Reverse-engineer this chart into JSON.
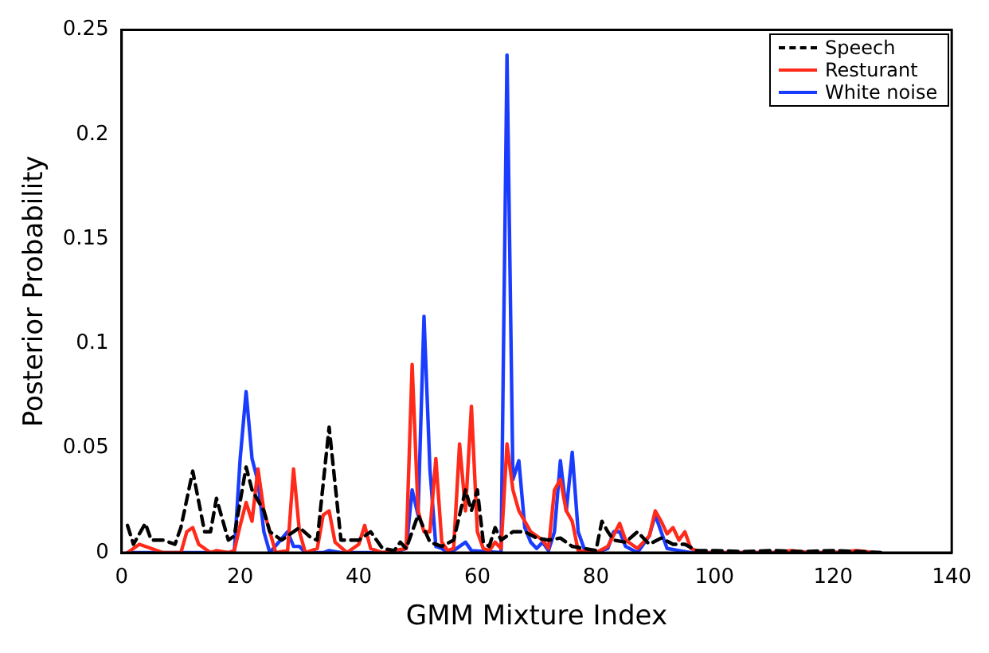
{
  "chart_data": {
    "type": "line",
    "xlabel": "GMM Mixture Index",
    "ylabel": "Posterior Probability",
    "xlim": [
      0,
      140
    ],
    "xticks": [
      0,
      20,
      40,
      60,
      80,
      100,
      120,
      140
    ],
    "ylim": [
      0,
      0.25
    ],
    "yticks": [
      0,
      0.05,
      0.1,
      0.15,
      0.2,
      0.25
    ],
    "legend": "top right",
    "marker": "none",
    "grid": false,
    "series": [
      {
        "name": "Speech",
        "color": "#000000",
        "line_style": "dashed",
        "x": [
          1,
          2,
          4,
          5,
          7,
          9,
          10,
          12,
          14,
          15,
          16,
          18,
          19,
          21,
          22,
          24,
          25,
          27,
          30,
          32,
          33,
          35,
          37,
          40,
          42,
          44,
          46,
          47,
          48,
          50,
          52,
          54,
          56,
          58,
          59,
          60,
          61,
          62,
          63,
          64,
          66,
          68,
          70,
          72,
          74,
          76,
          78,
          80,
          81,
          82,
          83,
          85,
          87,
          89,
          91,
          93,
          95,
          97,
          100,
          105,
          110,
          115,
          120,
          125,
          128
        ],
        "values": [
          0.013,
          0.004,
          0.014,
          0.006,
          0.006,
          0.004,
          0.012,
          0.039,
          0.01,
          0.01,
          0.026,
          0.006,
          0.008,
          0.041,
          0.03,
          0.02,
          0.01,
          0.006,
          0.012,
          0.007,
          0.006,
          0.06,
          0.006,
          0.006,
          0.01,
          0.002,
          0.001,
          0.005,
          0.002,
          0.018,
          0.005,
          0.003,
          0.006,
          0.03,
          0.02,
          0.03,
          0.005,
          0.003,
          0.012,
          0.006,
          0.01,
          0.01,
          0.007,
          0.006,
          0.007,
          0.003,
          0.002,
          0.001,
          0.015,
          0.01,
          0.006,
          0.005,
          0.01,
          0.004,
          0.007,
          0.004,
          0.004,
          0.001,
          0.001,
          0.0005,
          0.001,
          0.0005,
          0.001,
          0.0005,
          0
        ]
      },
      {
        "name": "Resturant",
        "color": "#ff2a1a",
        "line_style": "solid",
        "x": [
          1,
          3,
          5,
          7,
          10,
          11,
          12,
          13,
          15,
          16,
          18,
          19,
          20,
          21,
          22,
          23,
          24,
          26,
          28,
          29,
          30,
          31,
          33,
          34,
          35,
          36,
          38,
          40,
          41,
          42,
          44,
          46,
          48,
          49,
          50,
          51,
          52,
          53,
          54,
          55,
          56,
          57,
          58,
          59,
          60,
          61,
          62,
          63,
          64,
          65,
          66,
          67,
          69,
          71,
          72,
          73,
          74,
          75,
          76,
          77,
          80,
          82,
          84,
          85,
          87,
          89,
          90,
          91,
          92,
          93,
          94,
          95,
          96,
          98,
          110,
          113,
          116,
          120,
          124,
          127
        ],
        "values": [
          0,
          0.004,
          0.002,
          0,
          0,
          0.01,
          0.012,
          0.004,
          0,
          0.001,
          0,
          0.001,
          0.013,
          0.024,
          0.015,
          0.04,
          0.02,
          0,
          0.001,
          0.04,
          0.01,
          0,
          0.002,
          0.018,
          0.02,
          0.005,
          0,
          0.004,
          0.013,
          0.002,
          0,
          0.001,
          0.002,
          0.09,
          0.02,
          0.01,
          0.01,
          0.045,
          0.005,
          0.001,
          0.002,
          0.052,
          0.02,
          0.07,
          0.01,
          0.002,
          0.001,
          0.005,
          0.002,
          0.052,
          0.03,
          0.02,
          0.01,
          0.006,
          0.002,
          0.03,
          0.035,
          0.02,
          0.015,
          0.001,
          0,
          0.003,
          0.014,
          0.006,
          0.002,
          0.008,
          0.02,
          0.015,
          0.009,
          0.012,
          0.006,
          0.01,
          0.002,
          0,
          0,
          0.001,
          0,
          0,
          0.001,
          0
        ]
      },
      {
        "name": "White noise",
        "color": "#1a3cff",
        "line_style": "solid",
        "x": [
          1,
          10,
          19,
          20,
          21,
          22,
          23,
          24,
          25,
          28,
          29,
          30,
          31,
          34,
          35,
          37,
          46,
          48,
          49,
          50,
          51,
          52,
          53,
          54,
          55,
          56,
          58,
          59,
          64,
          65,
          66,
          67,
          68,
          69,
          70,
          71,
          72,
          73,
          74,
          75,
          76,
          77,
          78,
          80,
          82,
          83,
          84,
          85,
          87,
          89,
          90,
          91,
          92,
          94,
          96,
          128
        ],
        "values": [
          0,
          0,
          0,
          0.045,
          0.077,
          0.045,
          0.034,
          0.01,
          0,
          0.01,
          0.003,
          0.003,
          0,
          0,
          0.001,
          0,
          0,
          0.002,
          0.03,
          0.018,
          0.113,
          0.04,
          0.003,
          0.002,
          0,
          0.001,
          0.005,
          0.001,
          0,
          0.238,
          0.035,
          0.044,
          0.012,
          0.005,
          0.002,
          0.005,
          0.001,
          0.01,
          0.044,
          0.02,
          0.048,
          0.01,
          0.002,
          0,
          0.002,
          0.01,
          0.01,
          0.003,
          0,
          0.008,
          0.018,
          0.01,
          0.002,
          0.001,
          0,
          0
        ]
      }
    ]
  }
}
